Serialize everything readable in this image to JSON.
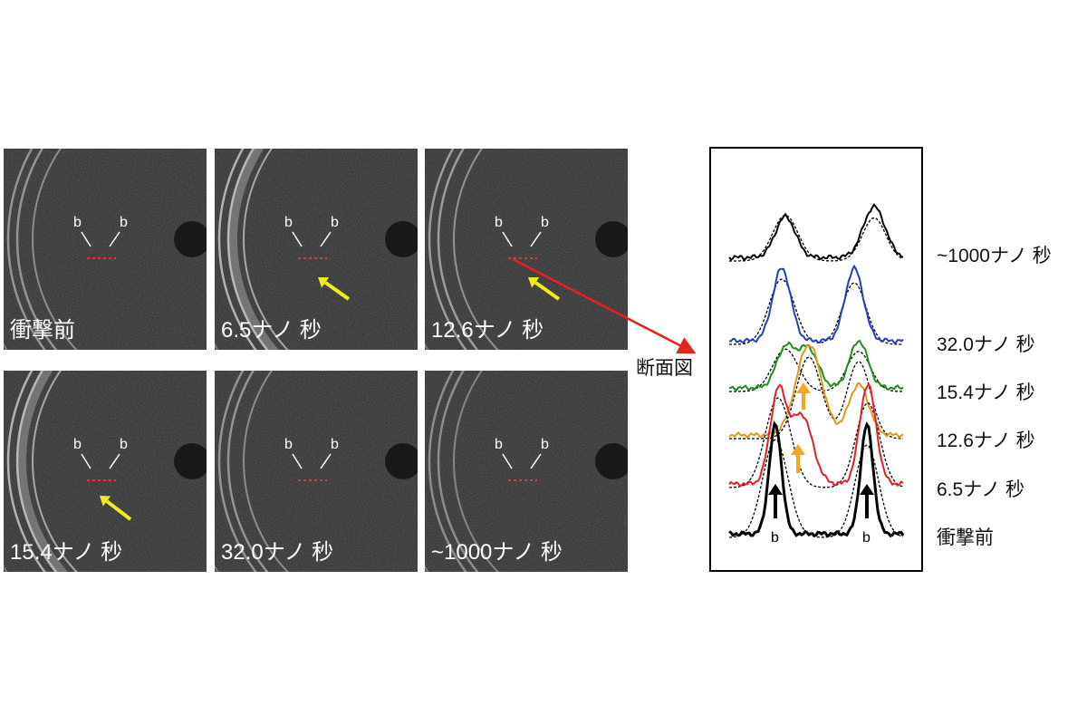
{
  "panels": [
    {
      "label": "衝撃前",
      "arrow": false
    },
    {
      "label": "6.5ナノ 秒",
      "arrow": true
    },
    {
      "label": "12.6ナノ 秒",
      "arrow": true
    },
    {
      "label": "15.4ナノ 秒",
      "arrow": true
    },
    {
      "label": "32.0ナノ 秒",
      "arrow": false
    },
    {
      "label": "~1000ナノ 秒",
      "arrow": false
    }
  ],
  "peak_letter": "b",
  "cross_section_label": "断面図",
  "profiles": [
    {
      "label": "~1000ナノ 秒",
      "color": "#000000"
    },
    {
      "label": "32.0ナノ 秒",
      "color": "#1f3fbf"
    },
    {
      "label": "15.4ナノ 秒",
      "color": "#1e8c1e"
    },
    {
      "label": "12.6ナノ 秒",
      "color": "#d99a1a"
    },
    {
      "label": "6.5ナノ 秒",
      "color": "#e31e24"
    },
    {
      "label": "衝撃前",
      "color": "#000000"
    }
  ],
  "colors": {
    "arrow_yellow": "#f2ea1d",
    "arrow_orange": "#f5a81c",
    "pointer_red": "#e8201e",
    "marker_red": "#ff2a2a"
  }
}
